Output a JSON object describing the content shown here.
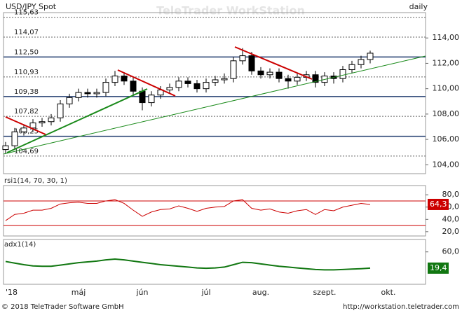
{
  "header": {
    "watermark": "TeleTrader WorkStation"
  },
  "footer": {
    "copyright": "© 2018 TeleTrader Software GmbH",
    "url": "http://workstation.teletrader.com"
  },
  "chart_data": [
    {
      "type": "candlestick",
      "title": "USD/JPY Spot",
      "subtitle": "daily",
      "categories": [
        "'18",
        null,
        null,
        null,
        null,
        null,
        null,
        null,
        "máj",
        null,
        null,
        null,
        null,
        null,
        null,
        "jún",
        null,
        null,
        null,
        null,
        null,
        null,
        "júl",
        null,
        null,
        null,
        null,
        null,
        "aug.",
        null,
        null,
        null,
        null,
        null,
        null,
        "szept.",
        null,
        null,
        null,
        null,
        null,
        null,
        "okt."
      ],
      "open": [
        105.2,
        105.5,
        106.6,
        106.9,
        107.3,
        107.4,
        107.7,
        108.8,
        109.3,
        109.7,
        109.6,
        109.7,
        110.5,
        111.0,
        110.6,
        109.8,
        108.9,
        109.5,
        109.9,
        110.1,
        110.6,
        110.4,
        110.0,
        110.5,
        110.7,
        110.8,
        112.2,
        112.6,
        111.4,
        111.1,
        111.3,
        110.8,
        110.6,
        110.9,
        111.1,
        110.5,
        111.0,
        110.8,
        111.5,
        111.9,
        112.3,
        null,
        null
      ],
      "high": [
        105.8,
        106.9,
        107.2,
        107.6,
        107.7,
        108.0,
        109.1,
        109.6,
        110.0,
        110.0,
        110.0,
        110.8,
        111.4,
        111.3,
        110.9,
        110.1,
        109.8,
        110.2,
        110.4,
        110.9,
        110.9,
        110.7,
        110.8,
        111.0,
        111.2,
        112.5,
        113.2,
        112.9,
        111.7,
        111.6,
        111.6,
        111.1,
        111.2,
        111.4,
        111.4,
        111.3,
        111.3,
        111.8,
        112.2,
        112.6,
        113.0,
        null,
        null
      ],
      "low": [
        104.9,
        105.2,
        106.3,
        106.6,
        107.0,
        107.1,
        107.4,
        108.5,
        109.0,
        109.3,
        109.3,
        109.4,
        110.2,
        110.3,
        109.5,
        108.3,
        108.6,
        109.2,
        109.6,
        109.8,
        110.1,
        109.7,
        109.7,
        110.2,
        110.4,
        110.5,
        111.9,
        111.1,
        110.8,
        110.8,
        110.5,
        110.0,
        110.3,
        110.6,
        110.1,
        110.2,
        110.4,
        110.5,
        111.2,
        111.6,
        112.0,
        null,
        null
      ],
      "close": [
        105.5,
        106.6,
        106.9,
        107.3,
        107.4,
        107.7,
        108.8,
        109.3,
        109.7,
        109.6,
        109.7,
        110.5,
        111.0,
        110.6,
        109.8,
        108.9,
        109.5,
        109.9,
        110.1,
        110.6,
        110.4,
        110.0,
        110.5,
        110.7,
        110.8,
        112.2,
        112.6,
        111.4,
        111.1,
        111.3,
        110.8,
        110.6,
        110.9,
        111.1,
        110.5,
        111.0,
        110.8,
        111.5,
        111.9,
        112.3,
        112.8,
        null,
        null
      ],
      "ylim": [
        103.3,
        116.0
      ],
      "yticks": [
        {
          "value": 104,
          "label": "104,00"
        },
        {
          "value": 106,
          "label": "106,00"
        },
        {
          "value": 108,
          "label": "108,00"
        },
        {
          "value": 110,
          "label": "110,00"
        },
        {
          "value": 112,
          "label": "112,00"
        },
        {
          "value": 114,
          "label": "114,00"
        }
      ],
      "levels": [
        {
          "value": 115.63,
          "label": "115,63",
          "style": "dotted"
        },
        {
          "value": 114.07,
          "label": "114,07",
          "style": "dotted"
        },
        {
          "value": 112.5,
          "label": "112,50",
          "style": "solid"
        },
        {
          "value": 110.93,
          "label": "110,93",
          "style": "dotted"
        },
        {
          "value": 109.38,
          "label": "109,38",
          "style": "solid"
        },
        {
          "value": 107.82,
          "label": "107,82",
          "style": "dotted"
        },
        {
          "value": 106.25,
          "label": "106,25",
          "style": "solid"
        },
        {
          "value": 104.69,
          "label": "104,69",
          "style": "dotted"
        }
      ],
      "up_color": "#ffffff",
      "down_color": "#000000"
    },
    {
      "type": "line",
      "title": "rsi1(14, 70, 30, 1)",
      "color": "#cc0000",
      "values": [
        38,
        48,
        50,
        55,
        55,
        58,
        65,
        67,
        68,
        66,
        66,
        70,
        72,
        66,
        55,
        45,
        52,
        56,
        57,
        62,
        58,
        53,
        58,
        60,
        61,
        70,
        72,
        58,
        55,
        57,
        52,
        50,
        54,
        56,
        48,
        56,
        54,
        60,
        63,
        66,
        64.3,
        null,
        null
      ],
      "current_label": "64,3",
      "reference_lines": [
        70,
        30
      ],
      "ylim": [
        13,
        95
      ],
      "yticks": [
        {
          "value": 20,
          "label": "20,0"
        },
        {
          "value": 40,
          "label": "40,0"
        },
        {
          "value": 60,
          "label": "60,0"
        },
        {
          "value": 80,
          "label": "80,0"
        }
      ]
    },
    {
      "type": "line",
      "title": "adx1(14)",
      "color": "#117711",
      "values": [
        36,
        32,
        28,
        25,
        24,
        24,
        27,
        30,
        33,
        35,
        37,
        40,
        42,
        40,
        37,
        34,
        31,
        28,
        26,
        24,
        22,
        20,
        19,
        20,
        22,
        28,
        34,
        33,
        30,
        27,
        24,
        22,
        20,
        18,
        16,
        15,
        15,
        16,
        17,
        18,
        19.4,
        null,
        null
      ],
      "current_label": "19,4",
      "ylim": [
        -21,
        91
      ],
      "yticks": [
        {
          "value": 60,
          "label": "60,0"
        }
      ]
    }
  ]
}
